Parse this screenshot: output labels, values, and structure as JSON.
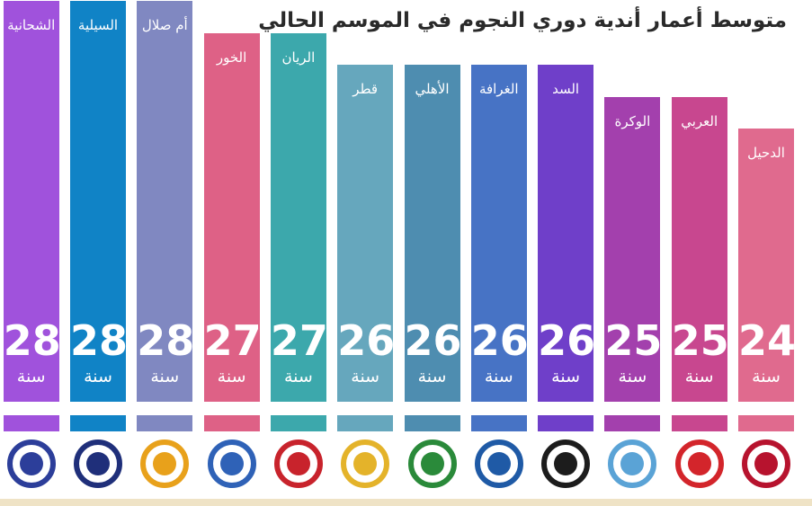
{
  "title": "متوسط أعمار أندية دوري النجوم في الموسم الحالي",
  "unit": "سنة",
  "chart_data": {
    "type": "bar",
    "title": "متوسط أعمار أندية دوري النجوم في الموسم الحالي",
    "unit": "سنة",
    "categories": [
      "الدحيل",
      "العربي",
      "الوكرة",
      "السد",
      "الغرافة",
      "الأهلي",
      "قطر",
      "الريان",
      "الخور",
      "أم صلال",
      "السيلية",
      "الشحانية"
    ],
    "values": [
      24,
      25,
      25,
      26,
      26,
      26,
      26,
      27,
      27,
      28,
      28,
      28
    ],
    "ylim": [
      20,
      28
    ],
    "colors": [
      "#e06a8e",
      "#c8478f",
      "#a340ad",
      "#6f3fc9",
      "#4773c5",
      "#4e8db0",
      "#66a7bd",
      "#3ca8ac",
      "#de6186",
      "#8088c1",
      "#1083c6",
      "#a052dc"
    ],
    "logos": [
      {
        "name": "duhail-logo",
        "color": "#b7132e"
      },
      {
        "name": "arabi-logo",
        "color": "#d3252b"
      },
      {
        "name": "wakra-logo",
        "color": "#5aa3d6"
      },
      {
        "name": "sadd-logo",
        "color": "#1c1c1c"
      },
      {
        "name": "gharafa-logo",
        "color": "#1f5aa6"
      },
      {
        "name": "ahli-logo",
        "color": "#2a8a3a"
      },
      {
        "name": "qatar-logo",
        "color": "#e4b32a"
      },
      {
        "name": "rayyan-logo",
        "color": "#c8232c"
      },
      {
        "name": "khor-logo",
        "color": "#2f62b7"
      },
      {
        "name": "umm-salal-logo",
        "color": "#e8a11b"
      },
      {
        "name": "sailiya-logo",
        "color": "#1f2f7a"
      },
      {
        "name": "shahania-logo",
        "color": "#2c3e9a"
      }
    ]
  }
}
